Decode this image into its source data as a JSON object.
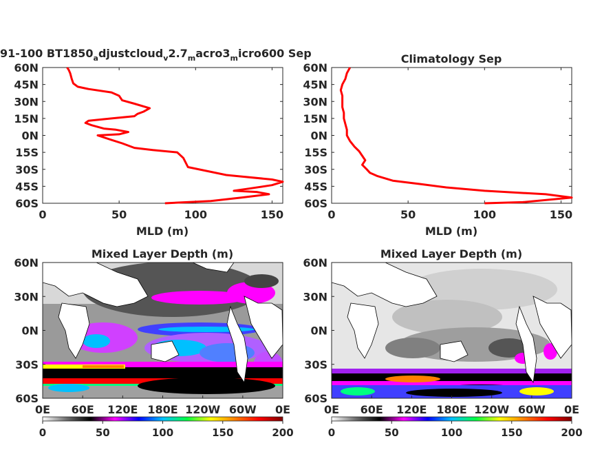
{
  "chart_data": [
    {
      "type": "line",
      "panel": "top-left",
      "title_parts": [
        "91-100 BT1850",
        "a",
        "djustcloud",
        "v",
        "2.7",
        "m",
        "acro3",
        "m",
        "icro600 Sep"
      ],
      "xlabel": "MLD (m)",
      "xlim": [
        0,
        157
      ],
      "ylim": [
        -60,
        60
      ],
      "x_ticks": [
        0,
        50,
        100,
        150
      ],
      "y_ticks": [
        60,
        45,
        30,
        15,
        0,
        -15,
        -30,
        -45,
        -60
      ],
      "y_tick_labels": [
        "60N",
        "45N",
        "30N",
        "15N",
        "0N",
        "15S",
        "30S",
        "45S",
        "60S"
      ],
      "color": "#ff0000",
      "series": [
        {
          "points": [
            [
              80,
              -60
            ],
            [
              110,
              -58
            ],
            [
              130,
              -55
            ],
            [
              148,
              -52
            ],
            [
              140,
              -50
            ],
            [
              125,
              -49
            ],
            [
              135,
              -47
            ],
            [
              150,
              -44
            ],
            [
              157,
              -41
            ],
            [
              150,
              -39
            ],
            [
              120,
              -35
            ],
            [
              95,
              -28
            ],
            [
              92,
              -20
            ],
            [
              88,
              -15
            ],
            [
              72,
              -13
            ],
            [
              60,
              -11
            ],
            [
              52,
              -7
            ],
            [
              45,
              -4
            ],
            [
              36,
              0
            ],
            [
              50,
              1
            ],
            [
              56,
              3
            ],
            [
              48,
              5
            ],
            [
              40,
              6
            ],
            [
              32,
              9
            ],
            [
              28,
              11
            ],
            [
              30,
              13
            ],
            [
              45,
              15
            ],
            [
              60,
              17
            ],
            [
              62,
              19
            ],
            [
              66,
              21
            ],
            [
              70,
              24
            ],
            [
              60,
              28
            ],
            [
              52,
              31
            ],
            [
              50,
              35
            ],
            [
              45,
              38
            ],
            [
              30,
              41
            ],
            [
              23,
              43
            ],
            [
              20,
              46
            ],
            [
              19,
              50
            ],
            [
              18,
              55
            ],
            [
              17,
              58
            ],
            [
              16,
              60
            ]
          ]
        }
      ]
    },
    {
      "type": "line",
      "panel": "top-right",
      "title": "Climatology Sep",
      "xlabel": "MLD (m)",
      "xlim": [
        0,
        157
      ],
      "ylim": [
        -60,
        60
      ],
      "x_ticks": [
        0,
        50,
        100,
        150
      ],
      "y_ticks": [
        60,
        45,
        30,
        15,
        0,
        -15,
        -30,
        -45,
        -60
      ],
      "y_tick_labels": [
        "60N",
        "45N",
        "30N",
        "15N",
        "0N",
        "15S",
        "30S",
        "45S",
        "60S"
      ],
      "color": "#ff0000",
      "series": [
        {
          "points": [
            [
              100,
              -60
            ],
            [
              125,
              -59
            ],
            [
              157,
              -55
            ],
            [
              140,
              -52
            ],
            [
              100,
              -49
            ],
            [
              75,
              -46
            ],
            [
              58,
              -43
            ],
            [
              40,
              -40
            ],
            [
              30,
              -36
            ],
            [
              25,
              -33
            ],
            [
              23,
              -30
            ],
            [
              20,
              -26
            ],
            [
              22,
              -22
            ],
            [
              20,
              -18
            ],
            [
              18,
              -14
            ],
            [
              15,
              -10
            ],
            [
              12,
              -5
            ],
            [
              10,
              0
            ],
            [
              10,
              5
            ],
            [
              9,
              10
            ],
            [
              8,
              15
            ],
            [
              8,
              20
            ],
            [
              7,
              25
            ],
            [
              7,
              30
            ],
            [
              7,
              35
            ],
            [
              6,
              40
            ],
            [
              7,
              45
            ],
            [
              9,
              50
            ],
            [
              10,
              55
            ],
            [
              12,
              60
            ]
          ]
        }
      ]
    },
    {
      "type": "heatmap",
      "panel": "bottom-left",
      "title": "Mixed Layer Depth (m)",
      "x_tick_labels": [
        "0E",
        "60E",
        "120E",
        "180E",
        "120W",
        "60W",
        "0E"
      ],
      "y_tick_labels": [
        "60N",
        "30N",
        "0N",
        "30S",
        "60S"
      ],
      "colorbar_ticks": [
        0,
        50,
        100,
        150,
        200
      ],
      "clim": [
        0,
        200
      ]
    },
    {
      "type": "heatmap",
      "panel": "bottom-right",
      "title": "Mixed Layer Depth (m)",
      "x_tick_labels": [
        "0E",
        "60E",
        "120E",
        "180E",
        "120W",
        "60W",
        "0E"
      ],
      "y_tick_labels": [
        "60N",
        "30N",
        "0N",
        "30S",
        "60S"
      ],
      "colorbar_ticks": [
        0,
        50,
        100,
        150,
        200
      ],
      "clim": [
        0,
        200
      ]
    }
  ],
  "colormap": [
    "#ffffff",
    "#6e6e6e",
    "#000000",
    "#ff00ff",
    "#0000ff",
    "#00c0ff",
    "#00ff40",
    "#ffff00",
    "#ff8000",
    "#ff0000",
    "#800000"
  ]
}
